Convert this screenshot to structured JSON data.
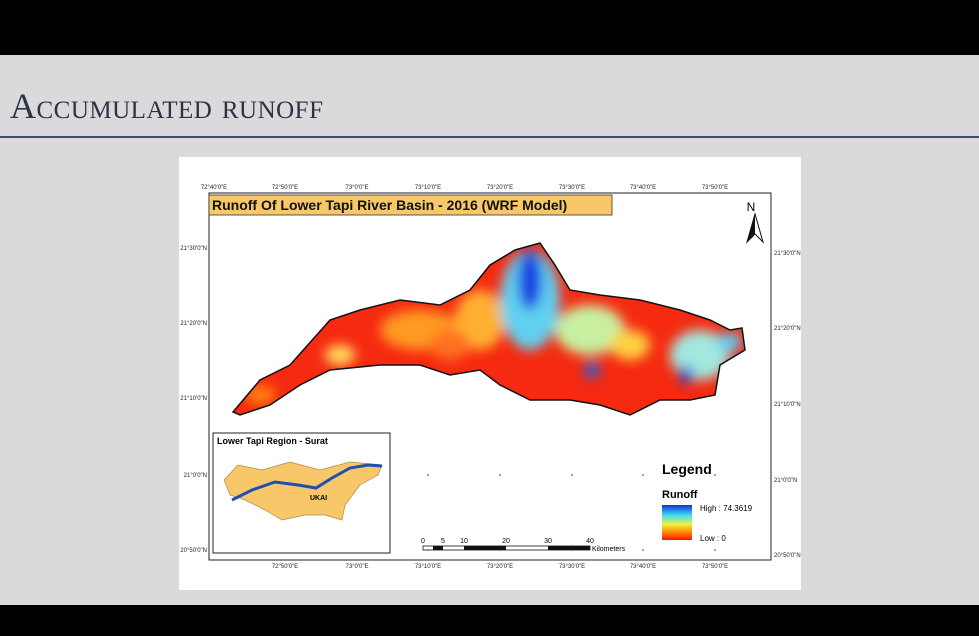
{
  "slide": {
    "title": "Accumulated runoff"
  },
  "map": {
    "title": "Runoff Of Lower Tapi River Basin - 2016 (WRF Model)",
    "north": "N",
    "top_longitudes": [
      "72°40'0\"E",
      "72°50'0\"E",
      "73°0'0\"E",
      "73°10'0\"E",
      "73°20'0\"E",
      "73°30'0\"E",
      "73°40'0\"E",
      "73°50'0\"E"
    ],
    "bottom_longitudes": [
      "72°50'0\"E",
      "73°0'0\"E",
      "73°10'0\"E",
      "73°20'0\"E",
      "73°30'0\"E",
      "73°40'0\"E",
      "73°50'0\"E"
    ],
    "left_latitudes": [
      "21°30'0\"N",
      "21°20'0\"N",
      "21°10'0\"N",
      "21°0'0\"N",
      "20°50'0\"N"
    ],
    "right_latitudes": [
      "21°30'0\"N",
      "21°20'0\"N",
      "21°10'0\"N",
      "21°0'0\"N",
      "20°50'0\"N"
    ],
    "inset": {
      "title": "Lower Tapi Region - Surat",
      "label": "UKAI"
    },
    "legend": {
      "title": "Legend",
      "layer": "Runoff",
      "high": "High : 74.3619",
      "low": "Low : 0"
    },
    "scale": {
      "ticks": [
        "0",
        "5",
        "10",
        "20",
        "30",
        "40"
      ],
      "unit": "Kilometers"
    }
  }
}
